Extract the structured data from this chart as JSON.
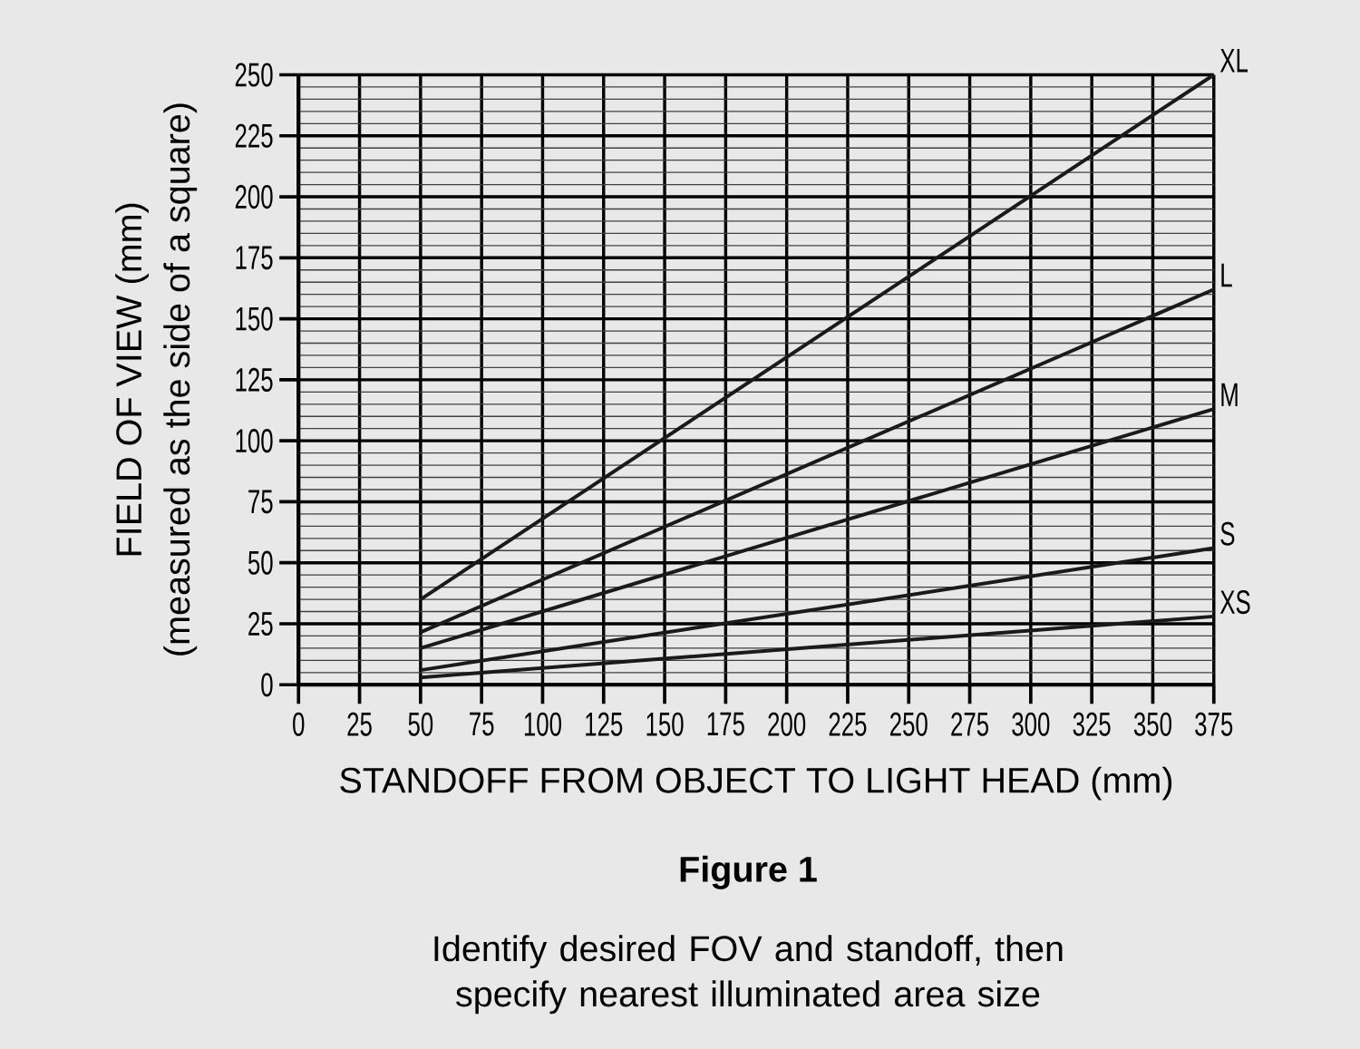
{
  "chart_data": {
    "type": "line",
    "xlabel": "STANDOFF FROM OBJECT TO LIGHT HEAD (mm)",
    "ylabel": "FIELD OF VIEW (mm)",
    "annotations": [
      "(measured as the side of a square)",
      "Figure 1",
      "Identify desired FOV and standoff, then specify nearest illuminated area size"
    ],
    "x": [
      50,
      375
    ],
    "series": [
      {
        "name": "XL",
        "color": "#1a1a1a",
        "values": [
          35,
          250
        ]
      },
      {
        "name": "L",
        "color": "#1a1a1a",
        "values": [
          21.5,
          162
        ]
      },
      {
        "name": "M",
        "color": "#1a1a1a",
        "values": [
          15,
          113
        ]
      },
      {
        "name": "S",
        "color": "#1a1a1a",
        "values": [
          6,
          56
        ]
      },
      {
        "name": "XS",
        "color": "#1a1a1a",
        "values": [
          3,
          28
        ]
      }
    ],
    "xlim": [
      0,
      375
    ],
    "ylim": [
      0,
      250
    ],
    "xticks": [
      0,
      25,
      50,
      75,
      100,
      125,
      150,
      175,
      200,
      225,
      250,
      275,
      300,
      325,
      350,
      375
    ],
    "yticks": [
      0,
      25,
      50,
      75,
      100,
      125,
      150,
      175,
      200,
      225,
      250
    ],
    "grid": true,
    "marker": "none",
    "line_style": "solid"
  }
}
